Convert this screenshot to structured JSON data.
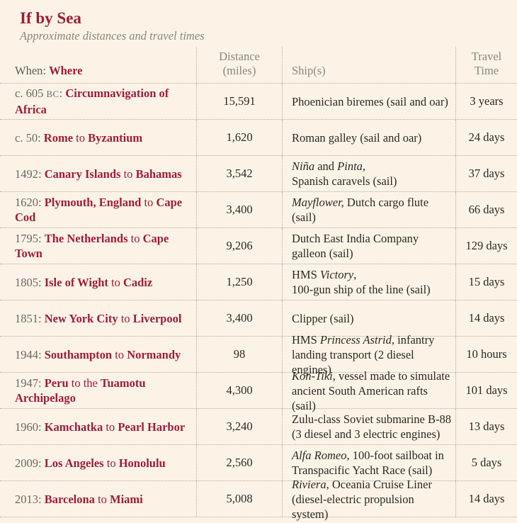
{
  "title": "If by Sea",
  "subtitle": "Approximate distances and travel times",
  "colors": {
    "background": "#fcf3e6",
    "accent_red": "#9e1c35",
    "muted_gray": "#6b6762",
    "header_gray": "#8a857c",
    "text_dark": "#2b2822",
    "rule": "#b0aba1"
  },
  "table": {
    "headers": {
      "when": "When:",
      "where": "Where",
      "distance_line1": "Distance",
      "distance_line2": "(miles)",
      "ships": "Ship(s)",
      "travel_line1": "Travel",
      "travel_line2": "Time"
    },
    "rows": [
      {
        "when": [
          {
            "t": "c. 605 ",
            "c": "yr"
          },
          {
            "t": "bc",
            "c": "era"
          },
          {
            "t": ": ",
            "c": "yr"
          },
          {
            "t": "Circumnavigation of Africa",
            "c": "pl"
          }
        ],
        "distance": "15,591",
        "ship": [
          [
            {
              "t": "Phoenician biremes (sail and oar)",
              "c": "rm"
            }
          ]
        ],
        "travel": "3 years"
      },
      {
        "when": [
          {
            "t": "c. 50: ",
            "c": "yr"
          },
          {
            "t": "Rome",
            "c": "pl"
          },
          {
            "t": " to ",
            "c": "conn"
          },
          {
            "t": "Byzantium",
            "c": "pl"
          }
        ],
        "distance": "1,620",
        "ship": [
          [
            {
              "t": "Roman galley (sail and oar)",
              "c": "rm"
            }
          ]
        ],
        "travel": "24 days"
      },
      {
        "when": [
          {
            "t": "1492: ",
            "c": "yr"
          },
          {
            "t": "Canary Islands",
            "c": "pl"
          },
          {
            "t": " to ",
            "c": "conn"
          },
          {
            "t": "Bahamas",
            "c": "pl"
          }
        ],
        "distance": "3,542",
        "ship": [
          [
            {
              "t": "Niña",
              "c": "it"
            },
            {
              "t": " and ",
              "c": "rm"
            },
            {
              "t": "Pinta",
              "c": "it"
            },
            {
              "t": ",",
              "c": "rm"
            }
          ],
          [
            {
              "t": "Spanish caravels (sail)",
              "c": "rm"
            }
          ]
        ],
        "travel": "37 days"
      },
      {
        "when": [
          {
            "t": "1620: ",
            "c": "yr"
          },
          {
            "t": "Plymouth, England",
            "c": "pl"
          },
          {
            "t": " to ",
            "c": "conn"
          },
          {
            "t": "Cape Cod",
            "c": "pl"
          }
        ],
        "distance": "3,400",
        "ship": [
          [
            {
              "t": "Mayflower,",
              "c": "it"
            },
            {
              "t": " Dutch cargo flute (sail)",
              "c": "rm"
            }
          ]
        ],
        "travel": "66 days"
      },
      {
        "when": [
          {
            "t": "1795: ",
            "c": "yr"
          },
          {
            "t": "The Netherlands",
            "c": "pl"
          },
          {
            "t": " to ",
            "c": "conn"
          },
          {
            "t": "Cape Town",
            "c": "pl"
          }
        ],
        "distance": "9,206",
        "ship": [
          [
            {
              "t": "Dutch East India Company",
              "c": "rm"
            }
          ],
          [
            {
              "t": "galleon (sail)",
              "c": "rm"
            }
          ]
        ],
        "travel": "129 days"
      },
      {
        "when": [
          {
            "t": "1805: ",
            "c": "yr"
          },
          {
            "t": "Isle of Wight",
            "c": "pl"
          },
          {
            "t": " to ",
            "c": "conn"
          },
          {
            "t": "Cadiz",
            "c": "pl"
          }
        ],
        "distance": "1,250",
        "ship": [
          [
            {
              "t": "HMS ",
              "c": "rm"
            },
            {
              "t": "Victory",
              "c": "it"
            },
            {
              "t": ",",
              "c": "rm"
            }
          ],
          [
            {
              "t": "100-gun ship of the line (sail)",
              "c": "rm"
            }
          ]
        ],
        "travel": "15 days"
      },
      {
        "when": [
          {
            "t": "1851: ",
            "c": "yr"
          },
          {
            "t": "New York City",
            "c": "pl"
          },
          {
            "t": " to ",
            "c": "conn"
          },
          {
            "t": "Liverpool",
            "c": "pl"
          }
        ],
        "distance": "3,400",
        "ship": [
          [
            {
              "t": "Clipper (sail)",
              "c": "rm"
            }
          ]
        ],
        "travel": "14 days"
      },
      {
        "when": [
          {
            "t": "1944: ",
            "c": "yr"
          },
          {
            "t": "Southampton",
            "c": "pl"
          },
          {
            "t": " to ",
            "c": "conn"
          },
          {
            "t": "Normandy",
            "c": "pl"
          }
        ],
        "distance": "98",
        "ship": [
          [
            {
              "t": "HMS ",
              "c": "rm"
            },
            {
              "t": "Princess Astrid",
              "c": "it"
            },
            {
              "t": ", infantry",
              "c": "rm"
            }
          ],
          [
            {
              "t": "landing transport (2 diesel engines)",
              "c": "rm"
            }
          ]
        ],
        "travel": "10 hours"
      },
      {
        "when": [
          {
            "t": "1947: ",
            "c": "yr"
          },
          {
            "t": "Peru",
            "c": "pl"
          },
          {
            "t": " to the ",
            "c": "conn"
          },
          {
            "t": "Tuamotu Archipelago",
            "c": "pl"
          }
        ],
        "distance": "4,300",
        "ship": [
          [
            {
              "t": "Kon-Tiki",
              "c": "it"
            },
            {
              "t": ", vessel made to simulate",
              "c": "rm"
            }
          ],
          [
            {
              "t": "ancient South American rafts (sail)",
              "c": "rm"
            }
          ]
        ],
        "travel": "101 days"
      },
      {
        "when": [
          {
            "t": "1960: ",
            "c": "yr"
          },
          {
            "t": "Kamchatka",
            "c": "pl"
          },
          {
            "t": " to ",
            "c": "conn"
          },
          {
            "t": "Pearl Harbor",
            "c": "pl"
          }
        ],
        "distance": "3,240",
        "ship": [
          [
            {
              "t": "Zulu-class Soviet submarine B-88",
              "c": "rm"
            }
          ],
          [
            {
              "t": "(3 diesel and 3 electric engines)",
              "c": "rm"
            }
          ]
        ],
        "travel": "13 days"
      },
      {
        "when": [
          {
            "t": "2009: ",
            "c": "yr"
          },
          {
            "t": "Los Angeles",
            "c": "pl"
          },
          {
            "t": " to ",
            "c": "conn"
          },
          {
            "t": "Honolulu",
            "c": "pl"
          }
        ],
        "distance": "2,560",
        "ship": [
          [
            {
              "t": "Alfa Romeo",
              "c": "it"
            },
            {
              "t": ", 100-foot sailboat in",
              "c": "rm"
            }
          ],
          [
            {
              "t": "Transpacific Yacht Race (sail)",
              "c": "rm"
            }
          ]
        ],
        "travel": "5 days"
      },
      {
        "when": [
          {
            "t": "2013: ",
            "c": "yr"
          },
          {
            "t": "Barcelona",
            "c": "pl"
          },
          {
            "t": " to ",
            "c": "conn"
          },
          {
            "t": "Miami",
            "c": "pl"
          }
        ],
        "distance": "5,008",
        "ship": [
          [
            {
              "t": "Riviera",
              "c": "it"
            },
            {
              "t": ", Oceania Cruise Liner",
              "c": "rm"
            }
          ],
          [
            {
              "t": "(diesel-electric propulsion system)",
              "c": "rm"
            }
          ]
        ],
        "travel": "14 days"
      }
    ]
  }
}
